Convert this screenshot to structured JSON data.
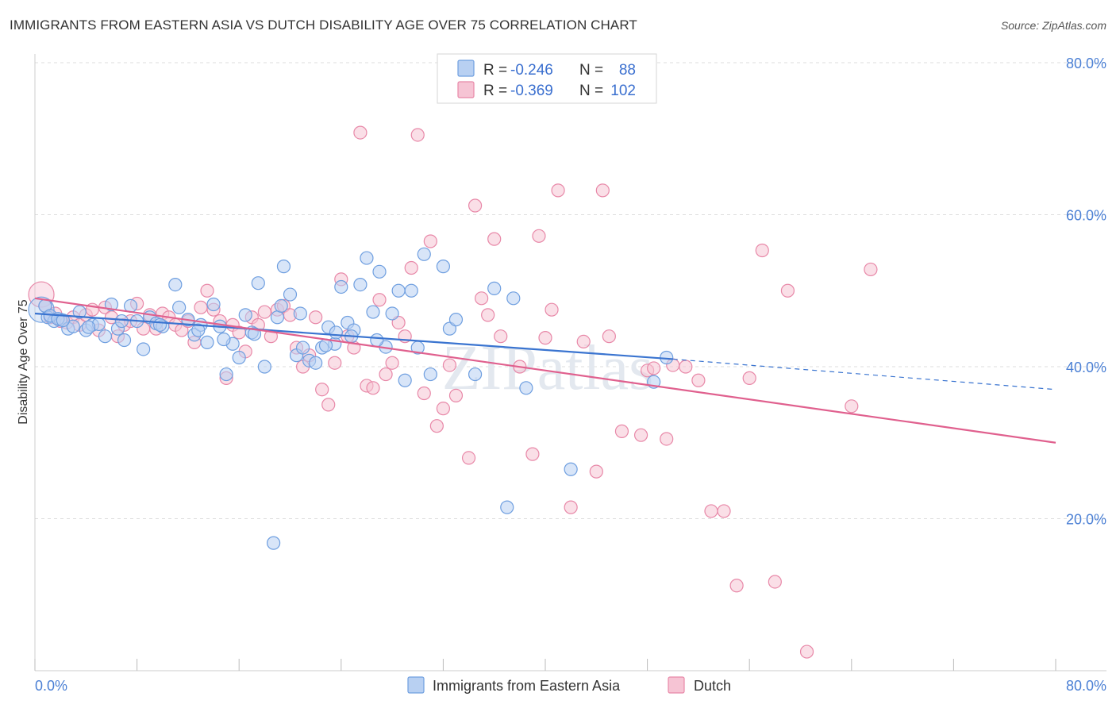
{
  "title": "IMMIGRANTS FROM EASTERN ASIA VS DUTCH DISABILITY AGE OVER 75 CORRELATION CHART",
  "source": "Source: ZipAtlas.com",
  "colors": {
    "blue": "#6f9fe0",
    "blue_fill": "#b8d0f2",
    "blue_line": "#3a74d0",
    "pink": "#e888a8",
    "pink_fill": "#f6c4d4",
    "pink_line": "#e0608e",
    "tick_text": "#4a7fd4"
  },
  "legend": {
    "rows": [
      {
        "r_label": "R =",
        "r_value": "-0.246",
        "n_label": "N =",
        "n_value": "88"
      },
      {
        "r_label": "R =",
        "r_value": "-0.369",
        "n_label": "N =",
        "n_value": "102"
      }
    ]
  },
  "bottom_legend": [
    "Immigrants from Eastern Asia",
    "Dutch"
  ],
  "watermark": "ZIPatlas",
  "chart_data": {
    "type": "scatter",
    "xlabel": "",
    "ylabel": "Disability Age Over 75",
    "xlim": [
      0,
      80
    ],
    "ylim": [
      0,
      80
    ],
    "x_tick_labels": [
      "0.0%",
      "80.0%"
    ],
    "y_tick_labels": [
      "20.0%",
      "40.0%",
      "60.0%",
      "80.0%"
    ],
    "y_ticks": [
      20,
      40,
      60,
      80
    ],
    "series": [
      {
        "name": "Immigrants from Eastern Asia",
        "r": -0.246,
        "n": 88,
        "trend": {
          "x0": 0,
          "y0": 47.0,
          "x1": 50,
          "y1": 41.0,
          "dash_to_x": 80,
          "dash_to_y": 37.0
        },
        "points": [
          [
            0.5,
            47.5
          ],
          [
            1.0,
            46.5
          ],
          [
            1.5,
            46.0
          ],
          [
            2.0,
            46.2
          ],
          [
            2.6,
            45.0
          ],
          [
            3.0,
            45.3
          ],
          [
            3.5,
            47.2
          ],
          [
            4.0,
            44.8
          ],
          [
            4.5,
            45.5
          ],
          [
            5.0,
            45.6
          ],
          [
            5.5,
            44.0
          ],
          [
            6.0,
            48.2
          ],
          [
            6.5,
            45.0
          ],
          [
            7.0,
            43.5
          ],
          [
            7.5,
            48.0
          ],
          [
            8.0,
            46.0
          ],
          [
            8.5,
            42.3
          ],
          [
            9.0,
            46.5
          ],
          [
            9.5,
            45.7
          ],
          [
            10.0,
            45.3
          ],
          [
            11.0,
            50.8
          ],
          [
            11.3,
            47.8
          ],
          [
            12.0,
            46.2
          ],
          [
            12.5,
            44.2
          ],
          [
            13.0,
            45.5
          ],
          [
            13.5,
            43.2
          ],
          [
            14.0,
            48.2
          ],
          [
            14.5,
            45.3
          ],
          [
            15.0,
            39.0
          ],
          [
            15.5,
            43.0
          ],
          [
            16.0,
            41.2
          ],
          [
            16.5,
            46.8
          ],
          [
            17.0,
            44.5
          ],
          [
            17.5,
            51.0
          ],
          [
            18.0,
            40.0
          ],
          [
            18.7,
            16.8
          ],
          [
            19.0,
            46.5
          ],
          [
            19.3,
            48.0
          ],
          [
            19.5,
            53.2
          ],
          [
            20.0,
            49.5
          ],
          [
            20.5,
            41.5
          ],
          [
            21.0,
            42.5
          ],
          [
            21.5,
            40.8
          ],
          [
            22.0,
            40.5
          ],
          [
            22.5,
            42.5
          ],
          [
            23.0,
            45.2
          ],
          [
            23.5,
            43.0
          ],
          [
            23.6,
            44.5
          ],
          [
            24.0,
            50.5
          ],
          [
            24.5,
            45.8
          ],
          [
            25.0,
            44.8
          ],
          [
            25.5,
            50.8
          ],
          [
            26.0,
            54.3
          ],
          [
            26.5,
            47.2
          ],
          [
            27.0,
            52.5
          ],
          [
            27.5,
            42.6
          ],
          [
            28.0,
            47.0
          ],
          [
            28.5,
            50.0
          ],
          [
            29.0,
            38.2
          ],
          [
            29.5,
            50.0
          ],
          [
            30.0,
            42.5
          ],
          [
            30.5,
            54.8
          ],
          [
            31.0,
            39.0
          ],
          [
            32.0,
            53.2
          ],
          [
            32.5,
            45.0
          ],
          [
            33.0,
            46.2
          ],
          [
            34.5,
            39.0
          ],
          [
            36.0,
            50.3
          ],
          [
            37.0,
            21.5
          ],
          [
            37.5,
            49.0
          ],
          [
            38.5,
            37.2
          ],
          [
            42.0,
            26.5
          ],
          [
            48.5,
            38.0
          ],
          [
            49.5,
            41.2
          ],
          [
            0.8,
            48.0
          ],
          [
            1.2,
            46.7
          ],
          [
            1.8,
            46.3
          ],
          [
            2.2,
            46.1
          ],
          [
            4.2,
            45.2
          ],
          [
            6.8,
            46.0
          ],
          [
            9.8,
            45.5
          ],
          [
            12.8,
            44.8
          ],
          [
            14.8,
            43.6
          ],
          [
            17.2,
            44.3
          ],
          [
            20.8,
            47.0
          ],
          [
            22.8,
            42.8
          ],
          [
            24.8,
            44.0
          ],
          [
            26.8,
            43.5
          ]
        ]
      },
      {
        "name": "Dutch",
        "r": -0.369,
        "n": 102,
        "trend": {
          "x0": 0,
          "y0": 49.0,
          "x1": 80,
          "y1": 30.0
        },
        "points": [
          [
            0.5,
            49.5
          ],
          [
            0.8,
            48.0
          ],
          [
            1.2,
            46.5
          ],
          [
            1.6,
            47.0
          ],
          [
            2.0,
            46.0
          ],
          [
            2.5,
            45.8
          ],
          [
            3.0,
            46.5
          ],
          [
            3.5,
            45.5
          ],
          [
            4.0,
            46.8
          ],
          [
            4.5,
            47.5
          ],
          [
            5.0,
            44.8
          ],
          [
            5.5,
            47.8
          ],
          [
            6.0,
            46.5
          ],
          [
            6.5,
            44.0
          ],
          [
            7.0,
            45.5
          ],
          [
            7.5,
            46.0
          ],
          [
            8.0,
            48.3
          ],
          [
            8.5,
            45.0
          ],
          [
            9.0,
            46.8
          ],
          [
            9.5,
            45.0
          ],
          [
            10.0,
            47.0
          ],
          [
            10.5,
            46.5
          ],
          [
            11.0,
            45.5
          ],
          [
            11.5,
            44.8
          ],
          [
            12.0,
            46.0
          ],
          [
            12.5,
            43.2
          ],
          [
            13.0,
            47.8
          ],
          [
            13.5,
            50.0
          ],
          [
            14.0,
            47.5
          ],
          [
            14.5,
            46.0
          ],
          [
            15.0,
            38.5
          ],
          [
            15.5,
            45.5
          ],
          [
            16.0,
            44.5
          ],
          [
            16.5,
            42.0
          ],
          [
            17.0,
            46.5
          ],
          [
            17.5,
            45.5
          ],
          [
            18.0,
            47.2
          ],
          [
            18.5,
            44.0
          ],
          [
            19.0,
            47.5
          ],
          [
            19.5,
            48.0
          ],
          [
            20.0,
            46.8
          ],
          [
            20.5,
            42.5
          ],
          [
            21.0,
            40.0
          ],
          [
            21.5,
            41.5
          ],
          [
            22.0,
            46.5
          ],
          [
            22.5,
            37.0
          ],
          [
            23.0,
            35.0
          ],
          [
            23.5,
            40.5
          ],
          [
            24.0,
            51.5
          ],
          [
            24.5,
            44.0
          ],
          [
            25.0,
            42.5
          ],
          [
            25.5,
            70.8
          ],
          [
            26.0,
            37.5
          ],
          [
            26.5,
            37.2
          ],
          [
            27.0,
            48.8
          ],
          [
            27.5,
            39.0
          ],
          [
            28.0,
            40.5
          ],
          [
            28.5,
            45.8
          ],
          [
            29.0,
            44.0
          ],
          [
            29.5,
            53.0
          ],
          [
            30.0,
            70.5
          ],
          [
            30.5,
            36.5
          ],
          [
            31.0,
            56.5
          ],
          [
            31.5,
            32.2
          ],
          [
            32.0,
            34.5
          ],
          [
            32.5,
            40.2
          ],
          [
            33.0,
            36.2
          ],
          [
            34.0,
            28.0
          ],
          [
            34.5,
            61.2
          ],
          [
            35.0,
            49.0
          ],
          [
            35.5,
            46.8
          ],
          [
            36.0,
            56.8
          ],
          [
            36.5,
            44.0
          ],
          [
            38.0,
            40.0
          ],
          [
            39.0,
            28.5
          ],
          [
            39.5,
            57.2
          ],
          [
            40.0,
            43.8
          ],
          [
            40.5,
            47.5
          ],
          [
            41.0,
            63.2
          ],
          [
            42.0,
            21.5
          ],
          [
            43.0,
            43.3
          ],
          [
            44.0,
            26.2
          ],
          [
            44.5,
            63.2
          ],
          [
            45.0,
            44.0
          ],
          [
            46.0,
            31.5
          ],
          [
            47.5,
            31.0
          ],
          [
            48.0,
            39.5
          ],
          [
            48.5,
            39.8
          ],
          [
            49.5,
            30.5
          ],
          [
            50.0,
            40.2
          ],
          [
            51.0,
            40.0
          ],
          [
            52.0,
            38.2
          ],
          [
            53.0,
            21.0
          ],
          [
            54.0,
            21.0
          ],
          [
            55.0,
            11.2
          ],
          [
            56.0,
            38.5
          ],
          [
            57.0,
            55.3
          ],
          [
            58.0,
            11.7
          ],
          [
            59.0,
            50.0
          ],
          [
            60.5,
            2.5
          ],
          [
            64.0,
            34.8
          ],
          [
            65.5,
            52.8
          ]
        ]
      }
    ]
  }
}
